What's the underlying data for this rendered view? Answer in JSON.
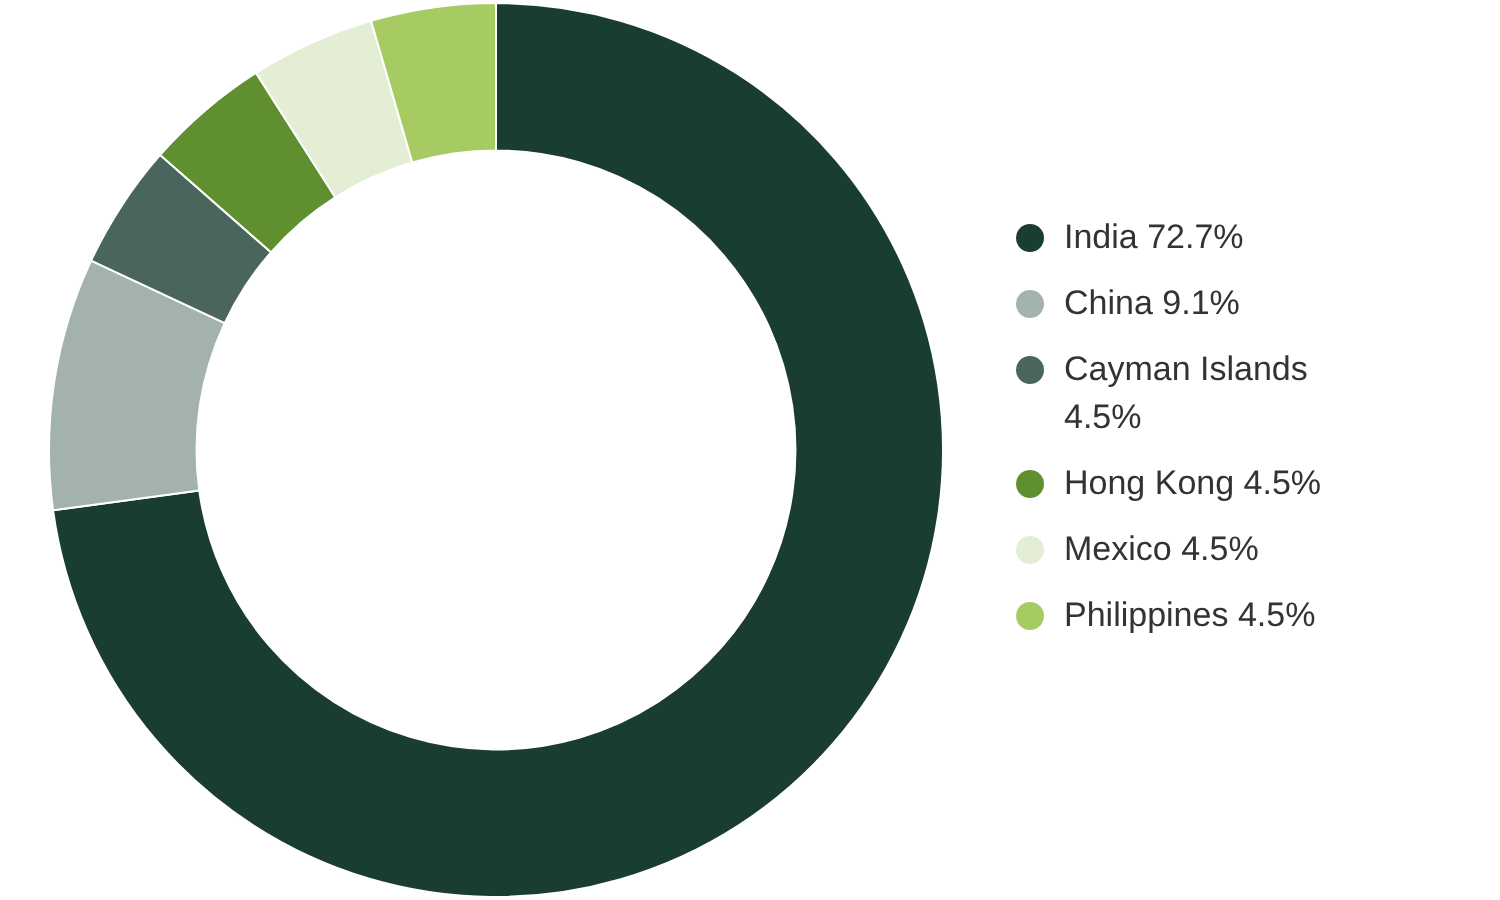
{
  "chart_data": {
    "type": "donut",
    "categories": [
      "India 72.7%",
      "China 9.1%",
      "Cayman Islands 4.5%",
      "Hong Kong 4.5%",
      "Mexico 4.5%",
      "Philippines 4.5%"
    ],
    "values": [
      72.7,
      9.1,
      4.5,
      4.5,
      4.5,
      4.5
    ],
    "colors": [
      "#1a3d33",
      "#a3b2ab",
      "#4a665c",
      "#5f8f2f",
      "#e3eed5",
      "#a5cb62"
    ],
    "legend": "right"
  }
}
